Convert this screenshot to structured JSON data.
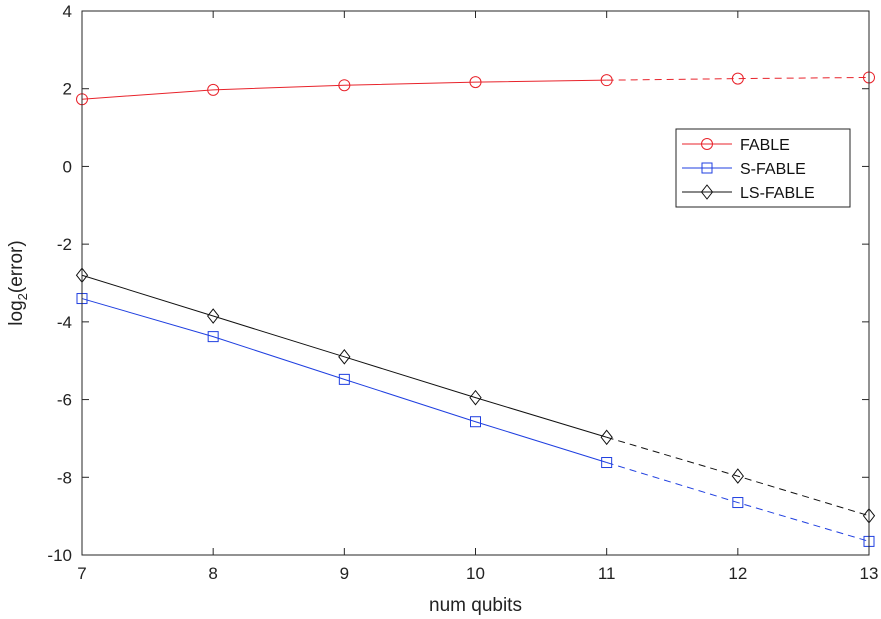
{
  "chart_data": {
    "type": "line",
    "xlabel": "num qubits",
    "ylabel": {
      "base": "log",
      "subscript": "2",
      "rest": "(error)"
    },
    "xlim": [
      7,
      13
    ],
    "ylim": [
      -10,
      4
    ],
    "xticks": [
      7,
      8,
      9,
      10,
      11,
      12,
      13
    ],
    "yticks": [
      -10,
      -8,
      -6,
      -4,
      -2,
      0,
      2,
      4
    ],
    "grid": false,
    "legend_position": "upper-right",
    "solid_until_x": 11,
    "series": [
      {
        "name": "FABLE",
        "color": "#e8232b",
        "marker": "circle",
        "x": [
          7,
          8,
          9,
          10,
          11,
          12,
          13
        ],
        "y": [
          1.73,
          1.97,
          2.09,
          2.17,
          2.22,
          2.26,
          2.29
        ]
      },
      {
        "name": "S-FABLE",
        "color": "#1f3fe0",
        "marker": "square",
        "x": [
          7,
          8,
          9,
          10,
          11,
          12,
          13
        ],
        "y": [
          -3.4,
          -4.38,
          -5.48,
          -6.57,
          -7.62,
          -8.65,
          -9.65
        ]
      },
      {
        "name": "LS-FABLE",
        "color": "#111111",
        "marker": "diamond",
        "x": [
          7,
          8,
          9,
          10,
          11,
          12,
          13
        ],
        "y": [
          -2.8,
          -3.85,
          -4.9,
          -5.95,
          -6.97,
          -7.97,
          -8.99
        ]
      }
    ]
  }
}
